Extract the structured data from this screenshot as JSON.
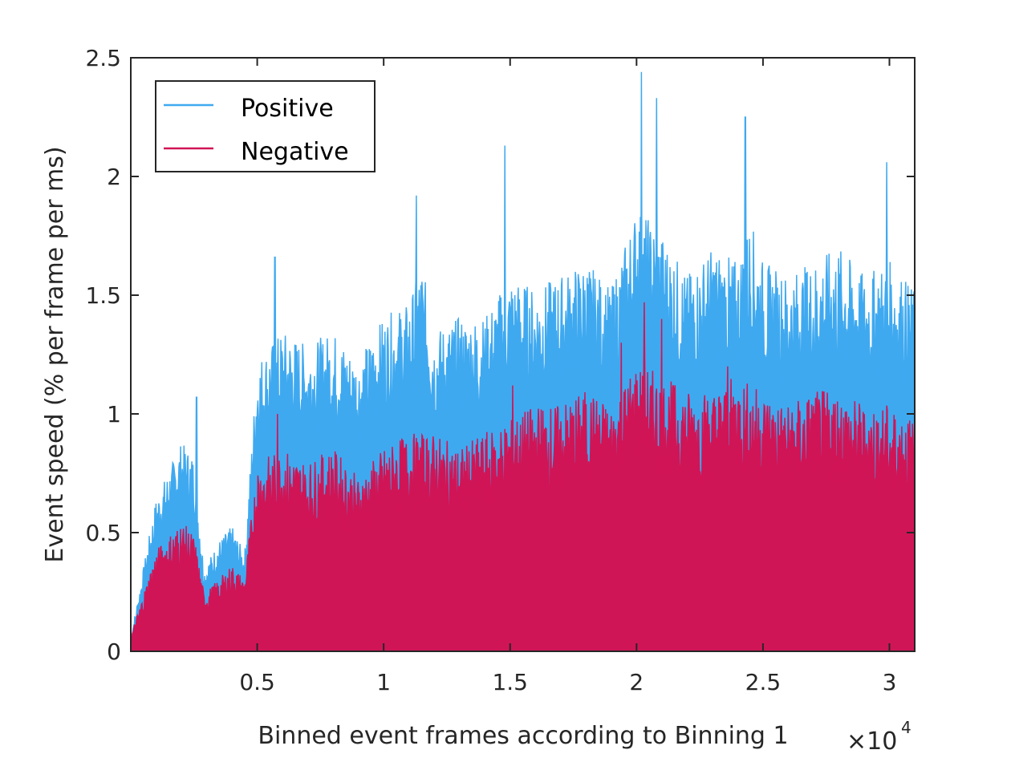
{
  "chart_data": {
    "type": "area",
    "xlabel": "Binned event frames according to Binning 1",
    "ylabel": "Event speed (% per frame per ms)",
    "x_exponent_label": "×10",
    "x_exponent_power": "4",
    "xlim": [
      0,
      31000
    ],
    "ylim": [
      0,
      2.5
    ],
    "x_ticks": [
      5000,
      10000,
      15000,
      20000,
      25000,
      30000
    ],
    "x_tick_labels": [
      "0.5",
      "1",
      "1.5",
      "2",
      "2.5",
      "3"
    ],
    "y_ticks": [
      0,
      0.5,
      1,
      1.5,
      2,
      2.5
    ],
    "y_tick_labels": [
      "0",
      "0.5",
      "1",
      "1.5",
      "2",
      "2.5"
    ],
    "grid": false,
    "legend_position": "top-left",
    "series": [
      {
        "name": "Positive",
        "color": "#3fa9f0",
        "x": [
          0,
          1000,
          2000,
          2500,
          2900,
          3500,
          4000,
          4500,
          5000,
          6000,
          7000,
          8000,
          9000,
          10000,
          11000,
          11500,
          12000,
          13000,
          14000,
          15000,
          16000,
          17000,
          18000,
          19000,
          19500,
          20000,
          20500,
          21000,
          22000,
          23000,
          24000,
          24500,
          25000,
          26000,
          27000,
          28000,
          29000,
          30000,
          31000
        ],
        "values": [
          0.05,
          0.55,
          0.75,
          0.7,
          0.3,
          0.4,
          0.45,
          0.35,
          1.05,
          1.15,
          1.1,
          1.15,
          1.05,
          1.2,
          1.25,
          1.4,
          1.15,
          1.2,
          1.2,
          1.35,
          1.3,
          1.35,
          1.4,
          1.3,
          1.45,
          1.6,
          1.55,
          1.5,
          1.35,
          1.45,
          1.4,
          1.55,
          1.4,
          1.35,
          1.4,
          1.45,
          1.35,
          1.4,
          1.3
        ],
        "peaks": [
          {
            "x": 2600,
            "y": 1.07
          },
          {
            "x": 5700,
            "y": 1.66
          },
          {
            "x": 11300,
            "y": 1.92
          },
          {
            "x": 14800,
            "y": 2.13
          },
          {
            "x": 20200,
            "y": 2.44
          },
          {
            "x": 20800,
            "y": 2.33
          },
          {
            "x": 24300,
            "y": 2.25
          },
          {
            "x": 29900,
            "y": 2.06
          }
        ]
      },
      {
        "name": "Negative",
        "color": "#d01556",
        "x": [
          0,
          1000,
          2000,
          2500,
          2900,
          3500,
          4000,
          4500,
          5000,
          6000,
          7000,
          8000,
          9000,
          10000,
          11000,
          12000,
          13000,
          14000,
          15000,
          16000,
          17000,
          18000,
          19000,
          20000,
          21000,
          22000,
          23000,
          24000,
          25000,
          26000,
          27000,
          28000,
          29000,
          30000,
          31000
        ],
        "values": [
          0.05,
          0.35,
          0.45,
          0.4,
          0.2,
          0.25,
          0.3,
          0.25,
          0.65,
          0.7,
          0.65,
          0.7,
          0.6,
          0.7,
          0.75,
          0.75,
          0.7,
          0.75,
          0.8,
          0.85,
          0.85,
          0.9,
          0.85,
          1.0,
          0.95,
          0.9,
          0.9,
          0.95,
          0.9,
          0.85,
          0.9,
          0.9,
          0.85,
          0.85,
          0.8
        ],
        "peaks": [
          {
            "x": 5800,
            "y": 1.0
          },
          {
            "x": 15100,
            "y": 1.12
          },
          {
            "x": 19400,
            "y": 1.3
          },
          {
            "x": 20300,
            "y": 1.47
          },
          {
            "x": 21000,
            "y": 1.4
          },
          {
            "x": 23600,
            "y": 1.2
          }
        ]
      }
    ]
  }
}
